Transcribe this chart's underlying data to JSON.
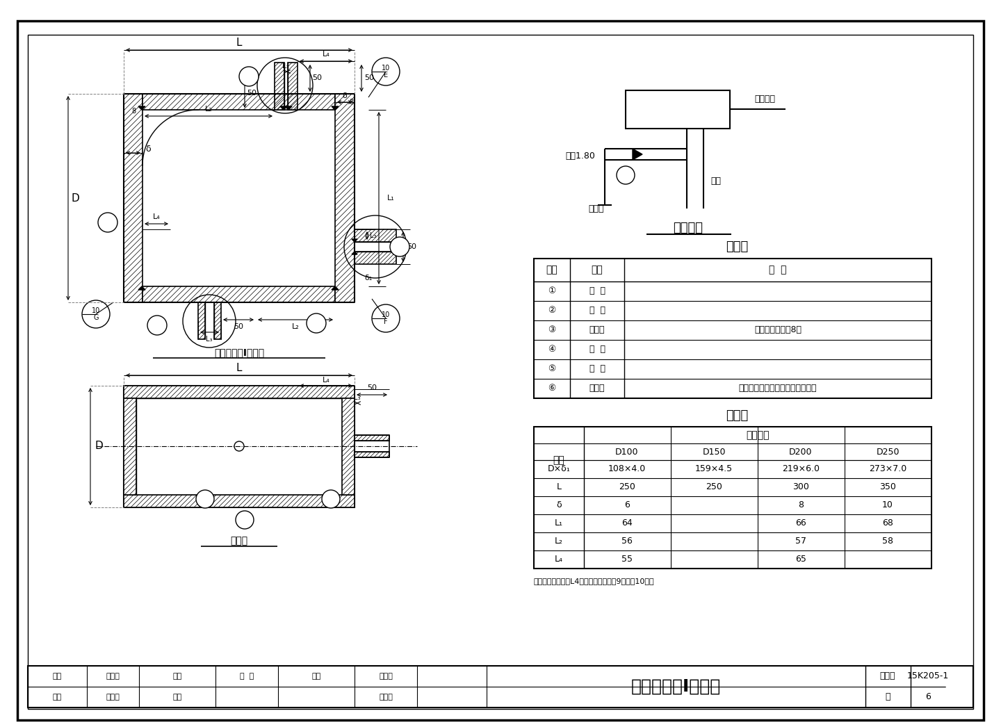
{
  "title": "卧式集气罐Ⅰ型总图",
  "fig_number": "15K205-1",
  "page": "6",
  "background_color": "#ffffff",
  "title_view1": "卧式集气罐Ⅰ型总图",
  "title_view2": "俯视图",
  "connection_title": "接管方式",
  "parts_title": "零件表",
  "dim_title": "尺寸表",
  "label_dist": "距地1.80",
  "label_horiz": "水平干管",
  "label_vent": "放气管",
  "label_riser": "立管",
  "note": "注：有效螺纹长度L4数值详见本图集第9页或第10页。",
  "parts_rows": [
    [
      "①",
      "外  壳",
      ""
    ],
    [
      "②",
      "盖  板",
      ""
    ],
    [
      "③",
      "放气管",
      ""
    ],
    [
      "④",
      "接  管",
      ""
    ],
    [
      "⑤",
      "接  管",
      ""
    ],
    [
      "⑥",
      "放气阀",
      "宜选用球阀，引至方便操作的位置"
    ]
  ],
  "dim_rows": [
    [
      "D×δ₁",
      "108×4.0",
      "159×4.5",
      "219×6.0",
      "273×7.0"
    ],
    [
      "L",
      "250",
      "250",
      "300",
      "350"
    ],
    [
      "δ",
      "6",
      "",
      "8",
      "10"
    ],
    [
      "L₁",
      "64",
      "",
      "66",
      "68"
    ],
    [
      "L₂",
      "56",
      "",
      "57",
      "58"
    ],
    [
      "L₄",
      "55",
      "",
      "65",
      ""
    ]
  ],
  "tb_audit": "审核",
  "tb_audit_name": "米泉龄",
  "tb_sign": "签名",
  "tb_sign_name": "郭浩水",
  "tb_check": "校对",
  "tb_check_name": "陈  昀",
  "tb_inner": "内向",
  "tb_design": "设计",
  "tb_design_name": "田志叶",
  "tb_draw_name": "田志叶",
  "tb_fig_label": "图集号",
  "tb_page_label": "页"
}
